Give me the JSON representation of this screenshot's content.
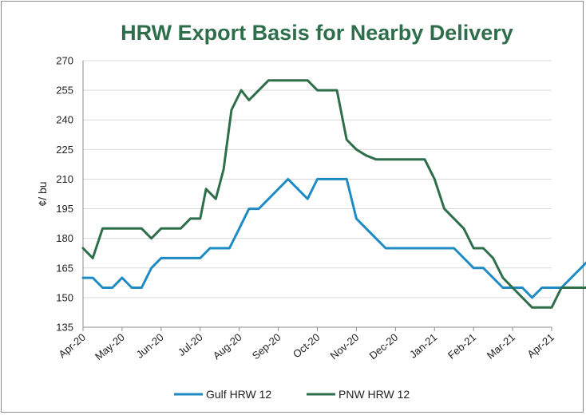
{
  "chart_data": {
    "type": "line",
    "title": "HRW Export Basis for Nearby Delivery",
    "xlabel": "",
    "ylabel": "¢/ bu",
    "ylim": [
      135,
      270
    ],
    "yticks": [
      135,
      150,
      165,
      180,
      195,
      210,
      225,
      240,
      255,
      270
    ],
    "x_labels": [
      "Apr-20",
      "May-20",
      "Jun-20",
      "Jul-20",
      "Aug-20",
      "Sep-20",
      "Oct-20",
      "Nov-20",
      "Dec-20",
      "Jan-21",
      "Feb-21",
      "Mar-21",
      "Apr-21"
    ],
    "grid": "horizontal",
    "legend_position": "bottom",
    "series": [
      {
        "name": "Gulf HRW 12",
        "color": "#1f8bc4",
        "points": [
          [
            0,
            160
          ],
          [
            0.25,
            160
          ],
          [
            0.5,
            155
          ],
          [
            0.75,
            155
          ],
          [
            1,
            160
          ],
          [
            1.25,
            155
          ],
          [
            1.5,
            155
          ],
          [
            1.75,
            165
          ],
          [
            2,
            170
          ],
          [
            2.25,
            170
          ],
          [
            2.5,
            170
          ],
          [
            2.75,
            170
          ],
          [
            3,
            170
          ],
          [
            3.25,
            175
          ],
          [
            3.5,
            175
          ],
          [
            3.75,
            175
          ],
          [
            4,
            185
          ],
          [
            4.25,
            195
          ],
          [
            4.5,
            195
          ],
          [
            4.75,
            200
          ],
          [
            5,
            205
          ],
          [
            5.25,
            210
          ],
          [
            5.5,
            205
          ],
          [
            5.75,
            200
          ],
          [
            6,
            210
          ],
          [
            6.25,
            210
          ],
          [
            6.5,
            210
          ],
          [
            6.75,
            210
          ],
          [
            7,
            190
          ],
          [
            7.25,
            185
          ],
          [
            7.5,
            180
          ],
          [
            7.75,
            175
          ],
          [
            8,
            175
          ],
          [
            8.5,
            175
          ],
          [
            9,
            175
          ],
          [
            9.5,
            175
          ],
          [
            10,
            165
          ],
          [
            10.25,
            165
          ],
          [
            10.5,
            160
          ],
          [
            10.75,
            155
          ],
          [
            11,
            155
          ],
          [
            11.25,
            155
          ],
          [
            11.5,
            150
          ],
          [
            11.75,
            155
          ],
          [
            12,
            155
          ],
          [
            12.25,
            155
          ],
          [
            12.5,
            160
          ],
          [
            12.75,
            165
          ],
          [
            13,
            170
          ]
        ]
      },
      {
        "name": "PNW HRW 12",
        "color": "#2e6e4b",
        "points": [
          [
            0,
            175
          ],
          [
            0.25,
            170
          ],
          [
            0.5,
            185
          ],
          [
            0.75,
            185
          ],
          [
            1,
            185
          ],
          [
            1.25,
            185
          ],
          [
            1.5,
            185
          ],
          [
            1.75,
            180
          ],
          [
            2,
            185
          ],
          [
            2.25,
            185
          ],
          [
            2.5,
            185
          ],
          [
            2.75,
            190
          ],
          [
            3,
            190
          ],
          [
            3.15,
            205
          ],
          [
            3.4,
            200
          ],
          [
            3.6,
            215
          ],
          [
            3.8,
            245
          ],
          [
            4.05,
            255
          ],
          [
            4.25,
            250
          ],
          [
            4.5,
            255
          ],
          [
            4.75,
            260
          ],
          [
            5,
            260
          ],
          [
            5.25,
            260
          ],
          [
            5.5,
            260
          ],
          [
            5.75,
            260
          ],
          [
            6,
            255
          ],
          [
            6.25,
            255
          ],
          [
            6.5,
            255
          ],
          [
            6.75,
            230
          ],
          [
            7,
            225
          ],
          [
            7.25,
            222
          ],
          [
            7.5,
            220
          ],
          [
            8,
            220
          ],
          [
            8.5,
            220
          ],
          [
            8.75,
            220
          ],
          [
            9,
            210
          ],
          [
            9.25,
            195
          ],
          [
            9.5,
            190
          ],
          [
            9.75,
            185
          ],
          [
            10,
            175
          ],
          [
            10.25,
            175
          ],
          [
            10.5,
            170
          ],
          [
            10.75,
            160
          ],
          [
            11,
            155
          ],
          [
            11.25,
            150
          ],
          [
            11.5,
            145
          ],
          [
            11.75,
            145
          ],
          [
            12,
            145
          ],
          [
            12.25,
            155
          ],
          [
            12.5,
            155
          ],
          [
            13,
            155
          ]
        ]
      }
    ]
  }
}
